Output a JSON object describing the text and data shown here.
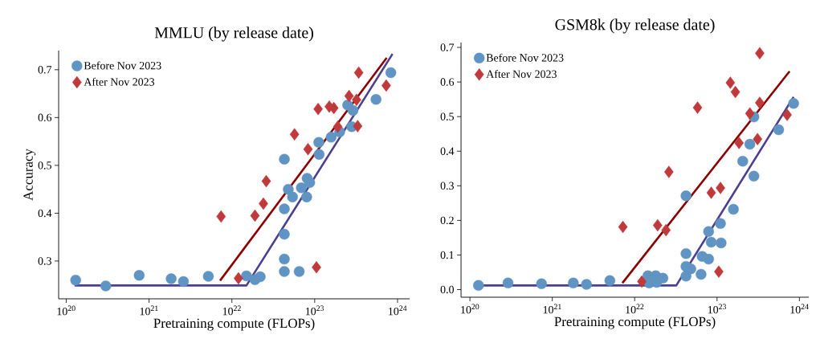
{
  "chart_data": [
    {
      "type": "scatter",
      "title": "MMLU (by release date)",
      "xlabel": "Pretraining compute (FLOPs)",
      "ylabel": "Accuracy",
      "log": "x",
      "legend": "top left",
      "xlim": [
        8.1e+19,
        1.4e+24
      ],
      "ylim": [
        0.221,
        0.74
      ],
      "xticks": [
        {
          "value": 1e+20,
          "label": "10$^{20}$"
        },
        {
          "value": 1e+21,
          "label": "10$^{21}$"
        },
        {
          "value": 1e+22,
          "label": "10$^{22}$"
        },
        {
          "value": 1e+23,
          "label": "10$^{23}$"
        },
        {
          "value": 1e+24,
          "label": "10$^{24}$"
        }
      ],
      "yticks": [
        0.3,
        0.4,
        0.5,
        0.6,
        0.7
      ],
      "series": [
        {
          "name": "Before Nov 2023",
          "marker": "circle",
          "color": "#5f94c3",
          "x": [
            1.3e+20,
            3e+20,
            7.6e+20,
            1.85e+21,
            2.6e+21,
            5.2e+21,
            1.3e+22,
            1.5e+22,
            1.9e+22,
            2.2e+22,
            4.3e+22,
            4.3e+22,
            4.3e+22,
            4.3e+22,
            4.3e+22,
            4.8e+22,
            5.4e+22,
            6.5e+22,
            6.9e+22,
            8.1e+22,
            8.7e+22,
            8e+22,
            1.12e+23,
            1.13e+23,
            1.58e+23,
            2e+23,
            2.5e+23,
            2.9e+23,
            2.8e+23,
            5.5e+23,
            8.3e+23
          ],
          "values": [
            0.26,
            0.248,
            0.27,
            0.263,
            0.257,
            0.268,
            null,
            0.269,
            0.261,
            0.267,
            0.513,
            0.409,
            0.356,
            0.304,
            0.278,
            0.45,
            0.434,
            0.278,
            0.453,
            0.473,
            0.464,
            0.434,
            0.548,
            0.523,
            0.559,
            0.57,
            0.626,
            0.615,
            0.581,
            0.638,
            0.694
          ]
        },
        {
          "name": "After Nov 2023",
          "marker": "diamond",
          "color": "#c0393b",
          "x": [
            7.4e+21,
            1.2e+22,
            1.9e+22,
            2.4e+22,
            2.6e+22,
            5.7e+22,
            8.3e+22,
            1.05e+23,
            1.1e+23,
            1.5e+23,
            1.7e+23,
            1.9e+23,
            2.6e+23,
            3.2e+23,
            3.3e+23,
            3.4e+23,
            7.3e+23
          ],
          "values": [
            0.393,
            0.264,
            0.395,
            0.42,
            0.467,
            0.565,
            0.534,
            0.287,
            0.618,
            0.623,
            0.62,
            0.581,
            0.645,
            0.637,
            0.582,
            0.694,
            0.667
          ]
        },
        {
          "type": "line",
          "color": "#8b0000",
          "x": [
            7.2e+21,
            7.4e+23
          ],
          "values": [
            0.259,
            0.725
          ]
        },
        {
          "type": "line",
          "color": "#4b3f91",
          "x": [
            1.26e+20,
            1.5e+22,
            8.7e+23
          ],
          "values": [
            0.249,
            0.249,
            0.733
          ]
        }
      ]
    },
    {
      "type": "scatter",
      "title": "GSM8k (by release date)",
      "xlabel": "Pretraining compute (FLOPs)",
      "log": "x",
      "legend": "top left",
      "xlim": [
        7.8e+19,
        1.3e+24
      ],
      "ylim": [
        -0.022,
        0.714
      ],
      "xticks": [
        {
          "value": 1e+20,
          "label": "10$^{20}$"
        },
        {
          "value": 1e+21,
          "label": "10$^{21}$"
        },
        {
          "value": 1e+22,
          "label": "10$^{22}$"
        },
        {
          "value": 1e+23,
          "label": "10$^{23}$"
        },
        {
          "value": 1e+24,
          "label": "10$^{24}$"
        }
      ],
      "yticks": [
        {
          "value": 0,
          "label": "0.0"
        },
        0.1,
        0.2,
        0.3,
        0.4,
        0.5,
        0.6,
        0.7
      ],
      "series": [
        {
          "name": "Before Nov 2023",
          "marker": "circle",
          "color": "#5f94c3",
          "x": [
            1.27e+20,
            2.9e+20,
            7.4e+20,
            1.8e+21,
            2.6e+21,
            5e+21,
            1.2e+22,
            1.45e+22,
            1.8e+22,
            2.2e+22,
            1.5e+22,
            1.85e+22,
            4.2e+22,
            4.2e+22,
            4.2e+22,
            4.2e+22,
            4.8e+22,
            6.4e+22,
            6.6e+22,
            7.9e+22,
            7.9e+22,
            8.5e+22,
            1.1e+23,
            1.12e+23,
            1.58e+23,
            2.05e+23,
            2.5e+23,
            2.8e+23,
            2.8e+23,
            5.6e+23,
            8.5e+23
          ],
          "values": [
            0.012,
            0.019,
            0.017,
            0.019,
            0.015,
            0.026,
            null,
            0.04,
            0.04,
            0.033,
            0.019,
            0.021,
            0.271,
            0.104,
            0.067,
            0.039,
            0.06,
            0.044,
            0.096,
            0.088,
            0.168,
            0.137,
            0.191,
            0.135,
            0.232,
            0.371,
            0.42,
            0.499,
            0.328,
            0.462,
            0.538
          ]
        },
        {
          "name": "After Nov 2023",
          "marker": "diamond",
          "color": "#c0393b",
          "x": [
            7.2e+21,
            1.22e+22,
            1.9e+22,
            2.4e+22,
            2.6e+22,
            5.8e+22,
            8.5e+22,
            1.05e+23,
            1.1e+23,
            1.45e+23,
            1.67e+23,
            1.85e+23,
            2.5e+23,
            3.1e+23,
            3.3e+23,
            3.3e+23,
            7.1e+23
          ],
          "values": [
            0.181,
            0.023,
            0.186,
            0.172,
            0.34,
            0.526,
            0.28,
            0.052,
            0.294,
            0.598,
            0.571,
            0.424,
            0.509,
            0.435,
            0.54,
            0.683,
            0.505
          ]
        },
        {
          "type": "line",
          "color": "#8b0000",
          "x": [
            7.1e+21,
            7.6e+23
          ],
          "values": [
            0.019,
            0.631
          ]
        },
        {
          "type": "line",
          "color": "#4b3f91",
          "x": [
            1.23e+20,
            3.2e+22,
            8.5e+23
          ],
          "values": [
            0.012,
            0.012,
            0.557
          ]
        }
      ]
    }
  ]
}
